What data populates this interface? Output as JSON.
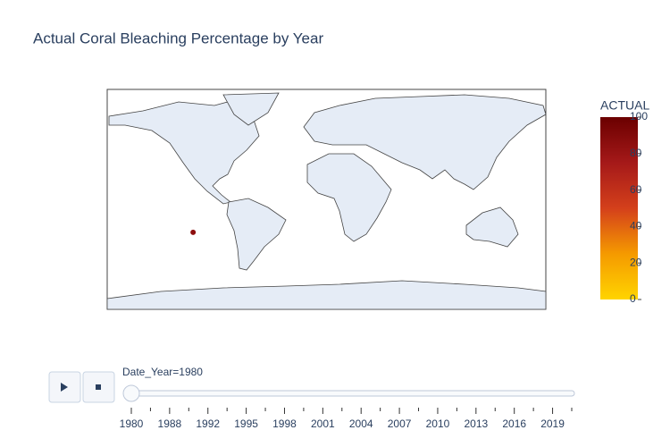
{
  "chart_data": {
    "type": "scatter_geo",
    "title": "Actual Coral Bleaching Percentage by Year",
    "lon": [
      -109.5
    ],
    "lat": [
      -27
    ],
    "values": [
      85
    ],
    "colorbar": {
      "title": "ACTUAL",
      "clim": [
        0,
        100
      ],
      "ticks": [
        0,
        20,
        40,
        60,
        80,
        100
      ],
      "colorscale": [
        "#ffd400",
        "#f59a00",
        "#d4401b",
        "#a51919",
        "#6b0000"
      ]
    },
    "slider": {
      "current_label": "Date_Year=1980",
      "steps": [
        1980,
        null,
        1988,
        null,
        1992,
        null,
        1995,
        null,
        1998,
        null,
        2001,
        null,
        2004,
        null,
        2007,
        null,
        2010,
        null,
        2013,
        null,
        2016,
        null,
        2019,
        null
      ]
    }
  }
}
